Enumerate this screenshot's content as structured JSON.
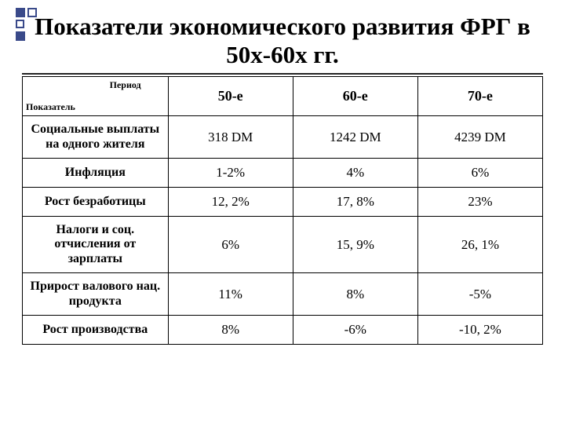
{
  "decor": {
    "accent": "#3a4a8a"
  },
  "title": "Показатели  экономического развития ФРГ в 50х-60х гг.",
  "table": {
    "corner": {
      "top": "Период",
      "bottom": "Показатель"
    },
    "columns": [
      "50-е",
      "60-е",
      "70-е"
    ],
    "rows": [
      {
        "label": "Социальные выплаты на одного жителя",
        "cells": [
          "318 DM",
          "1242 DM",
          "4239 DM"
        ]
      },
      {
        "label": "Инфляция",
        "cells": [
          "1-2%",
          "4%",
          "6%"
        ]
      },
      {
        "label": "Рост безработицы",
        "cells": [
          "12, 2%",
          "17, 8%",
          "23%"
        ]
      },
      {
        "label": "Налоги и соц. отчисления от зарплаты",
        "cells": [
          "6%",
          "15, 9%",
          "26, 1%"
        ]
      },
      {
        "label": "Прирост валового нац. продукта",
        "cells": [
          "11%",
          "8%",
          "-5%"
        ]
      },
      {
        "label": "Рост производства",
        "cells": [
          "8%",
          "-6%",
          "-10, 2%"
        ]
      }
    ]
  }
}
